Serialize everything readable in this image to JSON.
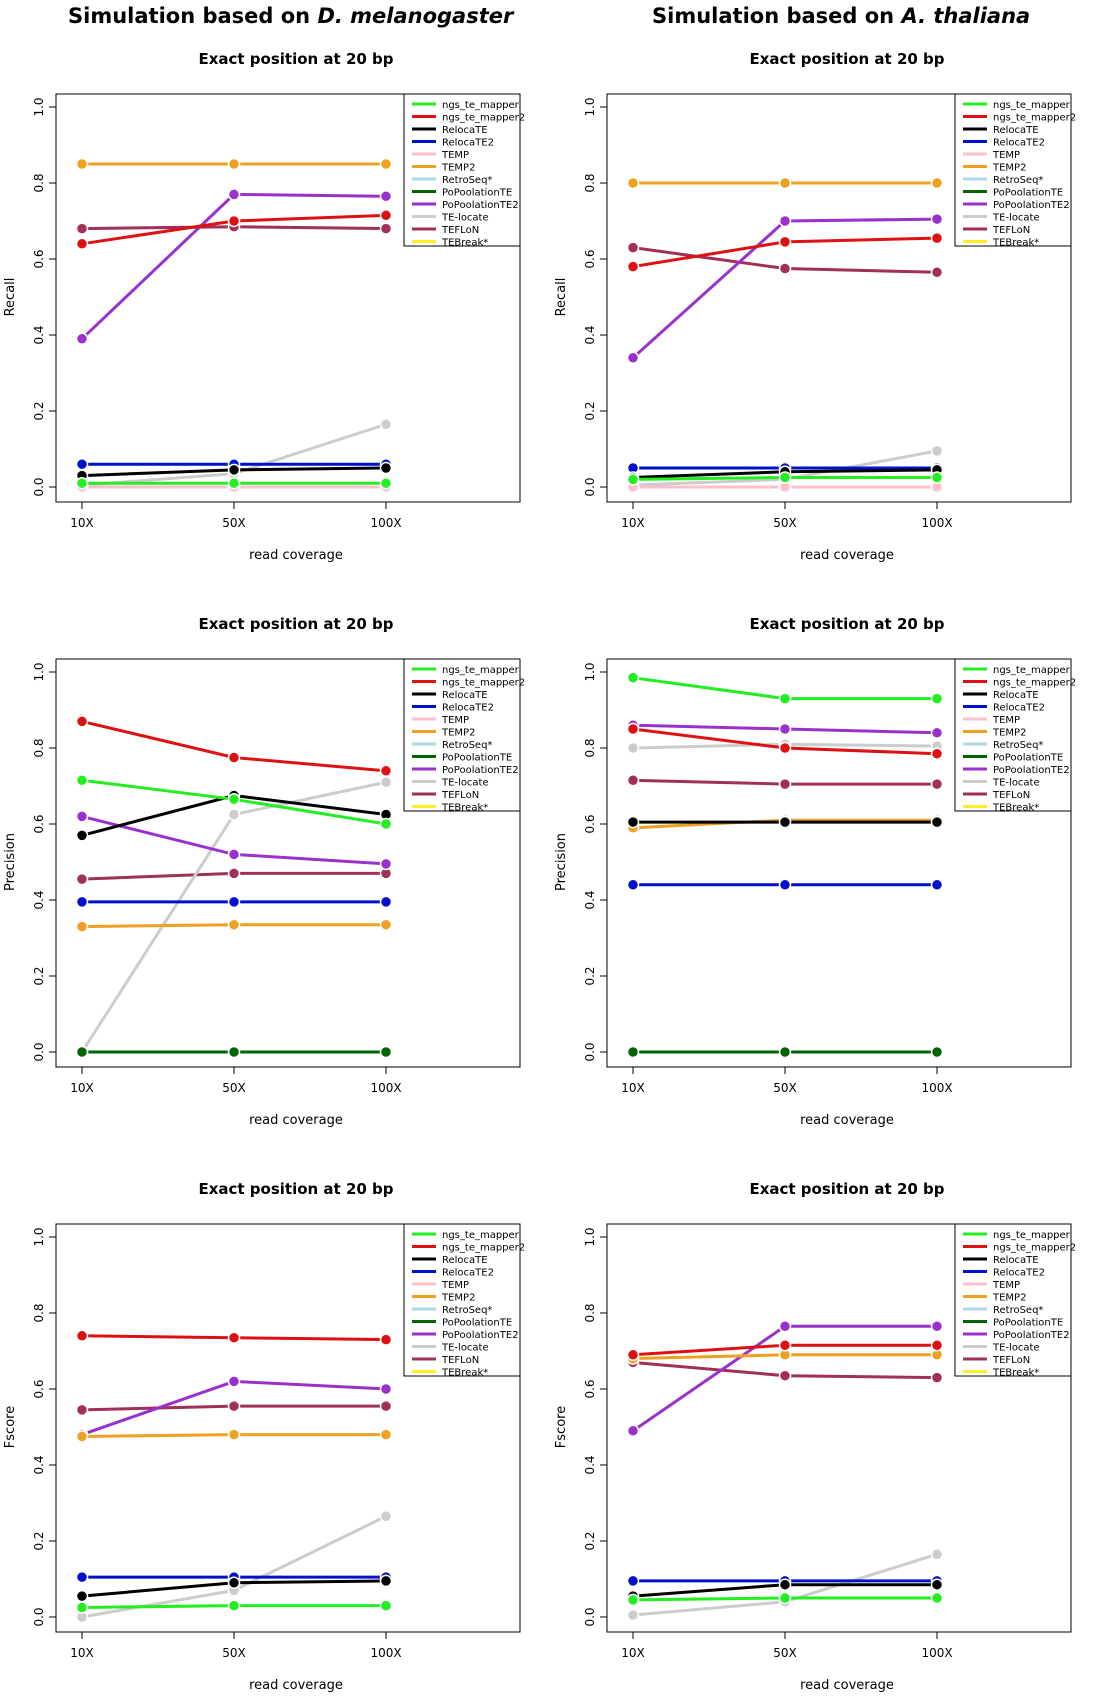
{
  "columns": [
    {
      "title_prefix": "Simulation based on ",
      "title_species": "D. melanogaster"
    },
    {
      "title_prefix": "Simulation based on ",
      "title_species": "A. thaliana"
    }
  ],
  "chart_data": [
    {
      "type": "line",
      "panel": "D. melanogaster - Recall",
      "title": "Exact position at 20 bp",
      "xlabel": "read coverage",
      "ylabel": "Recall",
      "categories": [
        "10X",
        "50X",
        "100X"
      ],
      "yticks": [
        "0.0",
        "0.2",
        "0.4",
        "0.6",
        "0.8",
        "1.0"
      ],
      "ylim": [
        0,
        1
      ],
      "legend": "top-right",
      "series": [
        {
          "name": "ngs_te_mapper",
          "color": "#22ee22",
          "values": [
            0.01,
            0.01,
            0.01
          ]
        },
        {
          "name": "ngs_te_mapper2",
          "color": "#dd1111",
          "values": [
            0.64,
            0.7,
            0.715
          ]
        },
        {
          "name": "RelocaTE",
          "color": "#000000",
          "values": [
            0.03,
            0.045,
            0.05
          ]
        },
        {
          "name": "RelocaTE2",
          "color": "#0011cc",
          "values": [
            0.06,
            0.06,
            0.06
          ]
        },
        {
          "name": "TEMP",
          "color": "#ffc0cb",
          "values": [
            0.0,
            0.0,
            0.0
          ]
        },
        {
          "name": "TEMP2",
          "color": "#eea020",
          "values": [
            0.85,
            0.85,
            0.85
          ]
        },
        {
          "name": "RetroSeq*",
          "color": "#add8e6",
          "values": [
            0.0,
            0.0,
            0.0
          ]
        },
        {
          "name": "PoPoolationTE",
          "color": "#006400",
          "values": [
            0.0,
            0.0,
            0.0
          ]
        },
        {
          "name": "PoPoolationTE2",
          "color": "#9932cc",
          "values": [
            0.39,
            0.77,
            0.765
          ]
        },
        {
          "name": "TE-locate",
          "color": "#cccccc",
          "values": [
            0.005,
            0.035,
            0.165
          ]
        },
        {
          "name": "TEFLoN",
          "color": "#a0305a",
          "values": [
            0.68,
            0.685,
            0.68
          ]
        },
        {
          "name": "TEBreak*",
          "color": "#ffee22",
          "values": [
            0.0,
            0.0,
            0.0
          ]
        }
      ]
    },
    {
      "type": "line",
      "panel": "A. thaliana - Recall",
      "title": "Exact position at 20 bp",
      "xlabel": "read coverage",
      "ylabel": "Recall",
      "categories": [
        "10X",
        "50X",
        "100X"
      ],
      "yticks": [
        "0.0",
        "0.2",
        "0.4",
        "0.6",
        "0.8",
        "1.0"
      ],
      "ylim": [
        0,
        1
      ],
      "legend": "top-right",
      "series": [
        {
          "name": "ngs_te_mapper",
          "color": "#22ee22",
          "values": [
            0.02,
            0.025,
            0.025
          ]
        },
        {
          "name": "ngs_te_mapper2",
          "color": "#dd1111",
          "values": [
            0.58,
            0.645,
            0.655
          ]
        },
        {
          "name": "RelocaTE",
          "color": "#000000",
          "values": [
            0.025,
            0.04,
            0.045
          ]
        },
        {
          "name": "RelocaTE2",
          "color": "#0011cc",
          "values": [
            0.05,
            0.05,
            0.05
          ]
        },
        {
          "name": "TEMP",
          "color": "#ffc0cb",
          "values": [
            0.0,
            0.0,
            0.0
          ]
        },
        {
          "name": "TEMP2",
          "color": "#eea020",
          "values": [
            0.8,
            0.8,
            0.8
          ]
        },
        {
          "name": "RetroSeq*",
          "color": "#add8e6",
          "values": [
            0.0,
            0.0,
            0.0
          ]
        },
        {
          "name": "PoPoolationTE",
          "color": "#006400",
          "values": [
            0.0,
            0.0,
            0.0
          ]
        },
        {
          "name": "PoPoolationTE2",
          "color": "#9932cc",
          "values": [
            0.34,
            0.7,
            0.705
          ]
        },
        {
          "name": "TE-locate",
          "color": "#cccccc",
          "values": [
            0.005,
            0.02,
            0.095
          ]
        },
        {
          "name": "TEFLoN",
          "color": "#a0305a",
          "values": [
            0.63,
            0.575,
            0.565
          ]
        },
        {
          "name": "TEBreak*",
          "color": "#ffee22",
          "values": [
            0.0,
            0.0,
            0.0
          ]
        }
      ]
    },
    {
      "type": "line",
      "panel": "D. melanogaster - Precision",
      "title": "Exact position at 20 bp",
      "xlabel": "read coverage",
      "ylabel": "Precision",
      "categories": [
        "10X",
        "50X",
        "100X"
      ],
      "yticks": [
        "0.0",
        "0.2",
        "0.4",
        "0.6",
        "0.8",
        "1.0"
      ],
      "ylim": [
        0,
        1
      ],
      "legend": "top-right",
      "series": [
        {
          "name": "ngs_te_mapper",
          "color": "#22ee22",
          "values": [
            0.715,
            0.665,
            0.6
          ]
        },
        {
          "name": "ngs_te_mapper2",
          "color": "#dd1111",
          "values": [
            0.87,
            0.775,
            0.74
          ]
        },
        {
          "name": "RelocaTE",
          "color": "#000000",
          "values": [
            0.57,
            0.675,
            0.625
          ]
        },
        {
          "name": "RelocaTE2",
          "color": "#0011cc",
          "values": [
            0.395,
            0.395,
            0.395
          ]
        },
        {
          "name": "TEMP",
          "color": "#ffc0cb",
          "values": [
            null,
            null,
            null
          ]
        },
        {
          "name": "TEMP2",
          "color": "#eea020",
          "values": [
            0.33,
            0.335,
            0.335
          ]
        },
        {
          "name": "RetroSeq*",
          "color": "#add8e6",
          "values": [
            null,
            null,
            null
          ]
        },
        {
          "name": "PoPoolationTE",
          "color": "#006400",
          "values": [
            0.0,
            0.0,
            0.0
          ]
        },
        {
          "name": "PoPoolationTE2",
          "color": "#9932cc",
          "values": [
            0.62,
            0.52,
            0.495
          ]
        },
        {
          "name": "TE-locate",
          "color": "#cccccc",
          "values": [
            0.0,
            0.625,
            0.71
          ]
        },
        {
          "name": "TEFLoN",
          "color": "#a0305a",
          "values": [
            0.455,
            0.47,
            0.47
          ]
        },
        {
          "name": "TEBreak*",
          "color": "#ffee22",
          "values": [
            null,
            null,
            null
          ]
        }
      ]
    },
    {
      "type": "line",
      "panel": "A. thaliana - Precision",
      "title": "Exact position at 20 bp",
      "xlabel": "read coverage",
      "ylabel": "Precision",
      "categories": [
        "10X",
        "50X",
        "100X"
      ],
      "yticks": [
        "0.0",
        "0.2",
        "0.4",
        "0.6",
        "0.8",
        "1.0"
      ],
      "ylim": [
        0,
        1
      ],
      "legend": "top-right",
      "series": [
        {
          "name": "ngs_te_mapper",
          "color": "#22ee22",
          "values": [
            0.985,
            0.93,
            0.93
          ]
        },
        {
          "name": "ngs_te_mapper2",
          "color": "#dd1111",
          "values": [
            0.85,
            0.8,
            0.785
          ]
        },
        {
          "name": "RelocaTE",
          "color": "#000000",
          "values": [
            0.605,
            0.605,
            0.605
          ]
        },
        {
          "name": "RelocaTE2",
          "color": "#0011cc",
          "values": [
            0.44,
            0.44,
            0.44
          ]
        },
        {
          "name": "TEMP",
          "color": "#ffc0cb",
          "values": [
            null,
            null,
            null
          ]
        },
        {
          "name": "TEMP2",
          "color": "#eea020",
          "values": [
            0.59,
            0.61,
            0.61
          ]
        },
        {
          "name": "RetroSeq*",
          "color": "#add8e6",
          "values": [
            null,
            null,
            null
          ]
        },
        {
          "name": "PoPoolationTE",
          "color": "#006400",
          "values": [
            0.0,
            0.0,
            0.0
          ]
        },
        {
          "name": "PoPoolationTE2",
          "color": "#9932cc",
          "values": [
            0.86,
            0.85,
            0.84
          ]
        },
        {
          "name": "TE-locate",
          "color": "#cccccc",
          "values": [
            0.8,
            0.81,
            0.805
          ]
        },
        {
          "name": "TEFLoN",
          "color": "#a0305a",
          "values": [
            0.715,
            0.705,
            0.705
          ]
        },
        {
          "name": "TEBreak*",
          "color": "#ffee22",
          "values": [
            null,
            null,
            null
          ]
        }
      ]
    },
    {
      "type": "line",
      "panel": "D. melanogaster - Fscore",
      "title": "Exact position at 20 bp",
      "xlabel": "read coverage",
      "ylabel": "Fscore",
      "categories": [
        "10X",
        "50X",
        "100X"
      ],
      "yticks": [
        "0.0",
        "0.2",
        "0.4",
        "0.6",
        "0.8",
        "1.0"
      ],
      "ylim": [
        0,
        1
      ],
      "legend": "top-right",
      "series": [
        {
          "name": "ngs_te_mapper",
          "color": "#22ee22",
          "values": [
            0.025,
            0.03,
            0.03
          ]
        },
        {
          "name": "ngs_te_mapper2",
          "color": "#dd1111",
          "values": [
            0.74,
            0.735,
            0.73
          ]
        },
        {
          "name": "RelocaTE",
          "color": "#000000",
          "values": [
            0.055,
            0.09,
            0.095
          ]
        },
        {
          "name": "RelocaTE2",
          "color": "#0011cc",
          "values": [
            0.105,
            0.105,
            0.105
          ]
        },
        {
          "name": "TEMP",
          "color": "#ffc0cb",
          "values": [
            null,
            null,
            null
          ]
        },
        {
          "name": "TEMP2",
          "color": "#eea020",
          "values": [
            0.475,
            0.48,
            0.48
          ]
        },
        {
          "name": "RetroSeq*",
          "color": "#add8e6",
          "values": [
            null,
            null,
            null
          ]
        },
        {
          "name": "PoPoolationTE",
          "color": "#006400",
          "values": [
            null,
            null,
            null
          ]
        },
        {
          "name": "PoPoolationTE2",
          "color": "#9932cc",
          "values": [
            0.48,
            0.62,
            0.6
          ]
        },
        {
          "name": "TE-locate",
          "color": "#cccccc",
          "values": [
            0.0,
            0.07,
            0.265
          ]
        },
        {
          "name": "TEFLoN",
          "color": "#a0305a",
          "values": [
            0.545,
            0.555,
            0.555
          ]
        },
        {
          "name": "TEBreak*",
          "color": "#ffee22",
          "values": [
            null,
            null,
            null
          ]
        }
      ]
    },
    {
      "type": "line",
      "panel": "A. thaliana - Fscore",
      "title": "Exact position at 20 bp",
      "xlabel": "read coverage",
      "ylabel": "Fscore",
      "categories": [
        "10X",
        "50X",
        "100X"
      ],
      "yticks": [
        "0.0",
        "0.2",
        "0.4",
        "0.6",
        "0.8",
        "1.0"
      ],
      "ylim": [
        0,
        1
      ],
      "legend": "top-right",
      "series": [
        {
          "name": "ngs_te_mapper",
          "color": "#22ee22",
          "values": [
            0.045,
            0.05,
            0.05
          ]
        },
        {
          "name": "ngs_te_mapper2",
          "color": "#dd1111",
          "values": [
            0.69,
            0.715,
            0.715
          ]
        },
        {
          "name": "RelocaTE",
          "color": "#000000",
          "values": [
            0.055,
            0.085,
            0.085
          ]
        },
        {
          "name": "RelocaTE2",
          "color": "#0011cc",
          "values": [
            0.095,
            0.095,
            0.095
          ]
        },
        {
          "name": "TEMP",
          "color": "#ffc0cb",
          "values": [
            null,
            null,
            null
          ]
        },
        {
          "name": "TEMP2",
          "color": "#eea020",
          "values": [
            0.68,
            0.69,
            0.69
          ]
        },
        {
          "name": "RetroSeq*",
          "color": "#add8e6",
          "values": [
            null,
            null,
            null
          ]
        },
        {
          "name": "PoPoolationTE",
          "color": "#006400",
          "values": [
            null,
            null,
            null
          ]
        },
        {
          "name": "PoPoolationTE2",
          "color": "#9932cc",
          "values": [
            0.49,
            0.765,
            0.765
          ]
        },
        {
          "name": "TE-locate",
          "color": "#cccccc",
          "values": [
            0.005,
            0.04,
            0.165
          ]
        },
        {
          "name": "TEFLoN",
          "color": "#a0305a",
          "values": [
            0.67,
            0.635,
            0.63
          ]
        },
        {
          "name": "TEBreak*",
          "color": "#ffee22",
          "values": [
            null,
            null,
            null
          ]
        }
      ]
    }
  ]
}
